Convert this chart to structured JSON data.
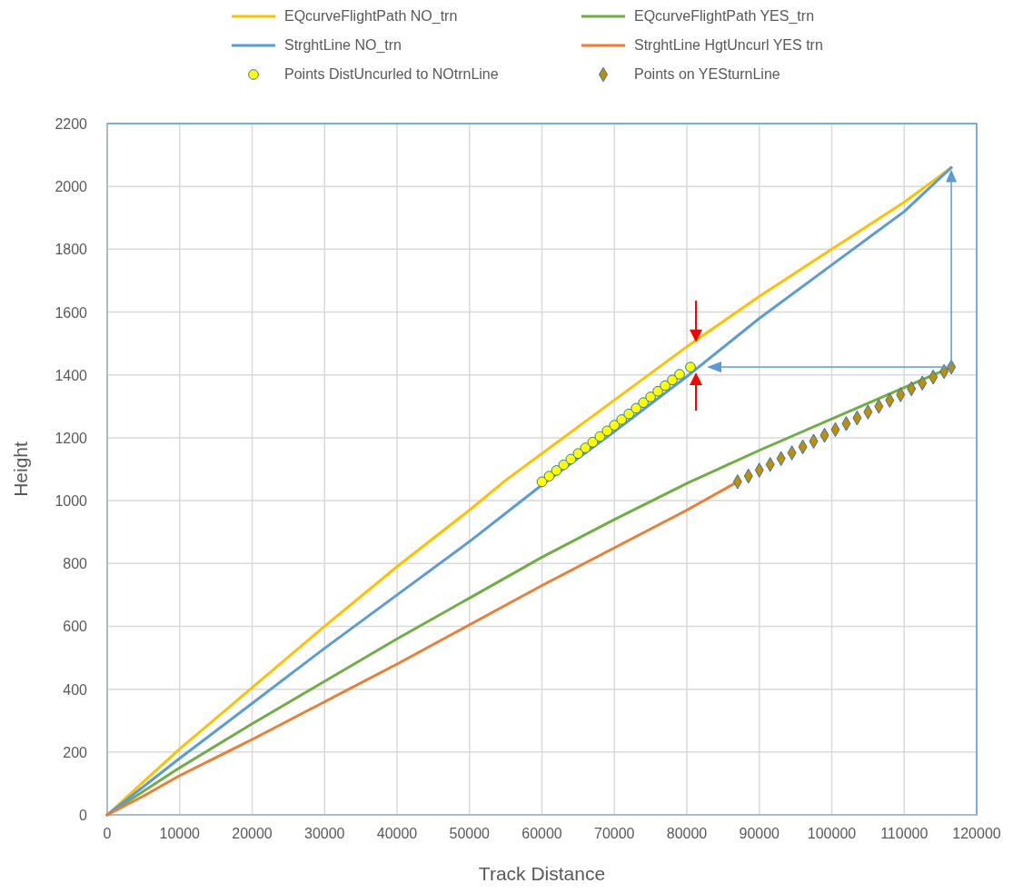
{
  "chart_data": {
    "type": "line",
    "xlabel": "Track Distance",
    "ylabel": "Height",
    "xlim": [
      0,
      120000
    ],
    "ylim": [
      0,
      2200
    ],
    "xticks": [
      0,
      10000,
      20000,
      30000,
      40000,
      50000,
      60000,
      70000,
      80000,
      90000,
      100000,
      110000,
      120000
    ],
    "yticks": [
      0,
      200,
      400,
      600,
      800,
      1000,
      1200,
      1400,
      1600,
      1800,
      2000,
      2200
    ],
    "grid": true,
    "legend": "top",
    "series": [
      {
        "name": "EQcurveFlightPath NO_trn",
        "color": "#ffc000",
        "x": [
          0,
          5000,
          10000,
          20000,
          30000,
          40000,
          50000,
          55000,
          60000,
          70000,
          80000,
          90000,
          100000,
          110000,
          116500
        ],
        "values": [
          0,
          105,
          210,
          405,
          600,
          790,
          970,
          1065,
          1150,
          1320,
          1490,
          1650,
          1800,
          1950,
          2060
        ]
      },
      {
        "name": "EQcurveFlightPath YES_trn",
        "color": "#70ad47",
        "x": [
          0,
          10000,
          20000,
          30000,
          40000,
          50000,
          60000,
          70000,
          80000,
          90000,
          100000,
          110000,
          116500
        ],
        "values": [
          0,
          150,
          290,
          425,
          560,
          690,
          820,
          940,
          1055,
          1160,
          1260,
          1360,
          1425
        ]
      },
      {
        "name": "StrghtLine NO_trn",
        "color": "#5b9bd5",
        "x": [
          0,
          10000,
          20000,
          30000,
          40000,
          50000,
          60000,
          70000,
          80000,
          90000,
          100000,
          110000,
          116500
        ],
        "values": [
          0,
          180,
          355,
          530,
          700,
          870,
          1050,
          1220,
          1395,
          1580,
          1750,
          1920,
          2060
        ]
      },
      {
        "name": "StrghtLine HgtUncurl YES trn",
        "color": "#ed7d31",
        "x": [
          0,
          5000,
          10000,
          20000,
          30000,
          40000,
          50000,
          60000,
          70000,
          80000,
          87000
        ],
        "values": [
          0,
          60,
          125,
          240,
          360,
          480,
          605,
          730,
          850,
          970,
          1060
        ]
      },
      {
        "name": "Points DistUncurled to NOtrnLine",
        "type": "scatter",
        "marker": "circle",
        "color": "#ffff00",
        "x": [
          60000,
          61000,
          62000,
          63000,
          64000,
          65000,
          66000,
          67000,
          68000,
          69000,
          70000,
          71000,
          72000,
          73000,
          74000,
          75000,
          76000,
          77000,
          78000,
          79000,
          80500
        ],
        "values": [
          1060,
          1078,
          1096,
          1114,
          1132,
          1150,
          1168,
          1186,
          1204,
          1222,
          1240,
          1258,
          1276,
          1294,
          1312,
          1330,
          1348,
          1366,
          1384,
          1402,
          1425
        ]
      },
      {
        "name": "Points on YESturnLine",
        "type": "scatter",
        "marker": "diamond",
        "color": "#bf8f00",
        "x": [
          87000,
          88500,
          90000,
          91500,
          93000,
          94500,
          96000,
          97500,
          99000,
          100500,
          102000,
          103500,
          105000,
          106500,
          108000,
          109500,
          111000,
          112500,
          114000,
          115500,
          116500
        ],
        "values": [
          1060,
          1078,
          1097,
          1115,
          1134,
          1152,
          1171,
          1189,
          1208,
          1226,
          1245,
          1263,
          1282,
          1300,
          1319,
          1337,
          1356,
          1374,
          1393,
          1411,
          1425
        ]
      }
    ]
  }
}
